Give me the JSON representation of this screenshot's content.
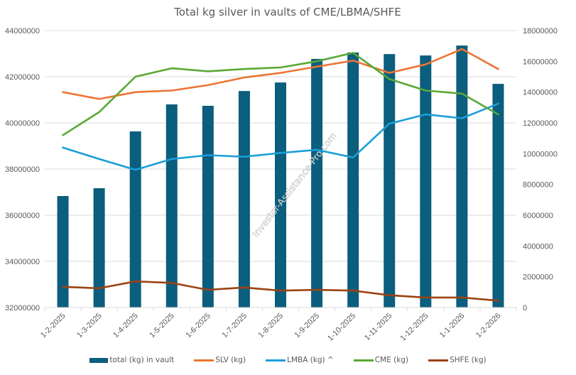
{
  "chart_data": {
    "type": "bar+line",
    "title": "Total kg silver in vaults of CME/LBMA/SHFE",
    "watermark": "Investor-Assistance-Pro.com",
    "categories": [
      "1-2-2025",
      "1-3-2025",
      "1-4-2025",
      "1-5-2025",
      "1-6-2025",
      "1-7-2025",
      "1-8-2025",
      "1-9-2025",
      "1-10-2025",
      "1-11-2025",
      "1-12-2025",
      "1-1-2026",
      "1-2-2026"
    ],
    "left_axis": {
      "ylim": [
        32000000,
        44000000
      ],
      "ticks": [
        "32000000",
        "34000000",
        "36000000",
        "38000000",
        "40000000",
        "42000000",
        "44000000"
      ],
      "tick_values": [
        32000000,
        34000000,
        36000000,
        38000000,
        40000000,
        42000000,
        44000000
      ]
    },
    "right_axis": {
      "ylim": [
        0,
        18000000
      ],
      "ticks": [
        "0",
        "2000000",
        "4000000",
        "6000000",
        "8000000",
        "10000000",
        "12000000",
        "14000000",
        "16000000",
        "18000000"
      ],
      "tick_values": [
        0,
        2000000,
        4000000,
        6000000,
        8000000,
        10000000,
        12000000,
        14000000,
        16000000,
        18000000
      ]
    },
    "grid": true,
    "legend_position": "bottom",
    "series": [
      {
        "name": "total (kg) in vault",
        "kind": "bar",
        "axis": "left",
        "color": "#0b5e7d",
        "values": [
          36830000,
          37170000,
          39630000,
          40800000,
          40740000,
          41380000,
          41750000,
          42770000,
          43050000,
          42980000,
          42920000,
          43350000,
          41690000
        ]
      },
      {
        "name": "SLV (kg)",
        "kind": "line",
        "axis": "right",
        "color": "#ed7434",
        "values": [
          14000000,
          13550000,
          14000000,
          14100000,
          14450000,
          14950000,
          15250000,
          15650000,
          16050000,
          15250000,
          15800000,
          16800000,
          15500000
        ]
      },
      {
        "name": "LMBA (kg) ^",
        "kind": "line",
        "axis": "right",
        "color": "#1a9fd8",
        "values": [
          10400000,
          9650000,
          8950000,
          9650000,
          9900000,
          9800000,
          10050000,
          10250000,
          9750000,
          11950000,
          12550000,
          12300000,
          13250000
        ]
      },
      {
        "name": "CME (kg)",
        "kind": "line",
        "axis": "right",
        "color": "#59a834",
        "values": [
          11200000,
          12700000,
          15000000,
          15550000,
          15350000,
          15500000,
          15600000,
          16000000,
          16550000,
          14850000,
          14100000,
          13900000,
          12550000
        ]
      },
      {
        "name": "SHFE (kg)",
        "kind": "line",
        "axis": "right",
        "color": "#9c4214",
        "values": [
          1350000,
          1250000,
          1700000,
          1600000,
          1150000,
          1300000,
          1100000,
          1150000,
          1100000,
          800000,
          650000,
          650000,
          450000
        ]
      }
    ]
  }
}
